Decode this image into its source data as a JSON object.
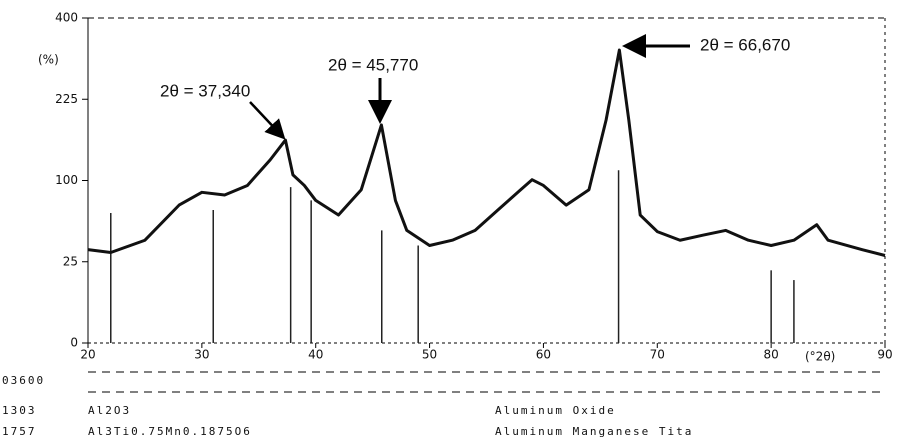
{
  "chart_data": {
    "type": "line",
    "y_label": "(%)",
    "x_label": "(°2θ)",
    "x": [
      20,
      22,
      25,
      28,
      30,
      32,
      34,
      36,
      37.34,
      38,
      39,
      40,
      42,
      44,
      45.77,
      47,
      48,
      50,
      52,
      54,
      56,
      58,
      59,
      60,
      62,
      64,
      65.5,
      66.67,
      67.5,
      68.5,
      70,
      72,
      74,
      76,
      78,
      80,
      82,
      84,
      85,
      88,
      90
    ],
    "series": [
      {
        "color": "#111111",
        "values": [
          33,
          31,
          40,
          72,
          86,
          83,
          94,
          127,
          156,
          107,
          94,
          77,
          62,
          89,
          180,
          77,
          48,
          36,
          40,
          48,
          67,
          89,
          101,
          94,
          72,
          89,
          188,
          325,
          188,
          62,
          47,
          40,
          44,
          48,
          40,
          36,
          40,
          53,
          40,
          33,
          29
        ]
      }
    ],
    "reference": {
      "color": "#222222",
      "x": [
        22,
        31,
        37.8,
        39.6,
        45.8,
        49,
        66.6,
        80,
        82
      ],
      "values": [
        64,
        67,
        92,
        77,
        48,
        36,
        113,
        20,
        15
      ]
    },
    "xlim": [
      20,
      90
    ],
    "ylim": [
      0,
      400
    ],
    "yscale": "sqrt",
    "xticks": [
      20,
      30,
      40,
      50,
      60,
      70,
      80,
      90
    ],
    "yticks": [
      0,
      25,
      100,
      225,
      400
    ],
    "annotations": [
      "2θ = 37,340",
      "2θ = 45,770",
      "2θ = 66,670"
    ],
    "pattern_list": {
      "header": "03600",
      "rows": [
        [
          "1303",
          "Al2O3",
          "Aluminum Oxide"
        ],
        [
          "1757",
          "Al3Ti0.75Mn0.1875O6",
          "Aluminum Manganese Tita"
        ]
      ]
    }
  }
}
